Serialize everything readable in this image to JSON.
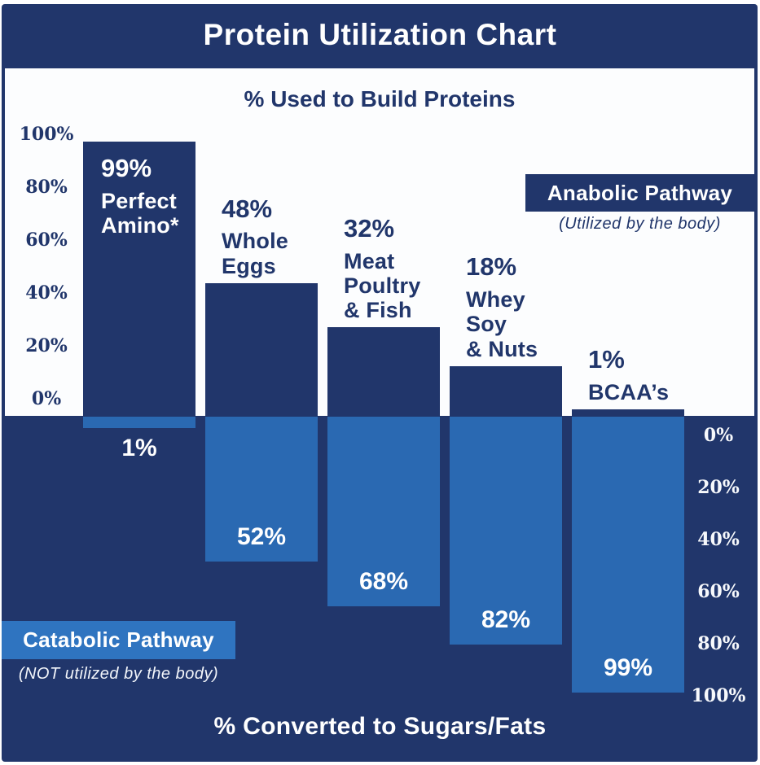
{
  "colors": {
    "navy": "#21366B",
    "bar_blue": "#2A69B2",
    "legend_blue": "#2F74C0",
    "background_white": "#FCFDFE",
    "text_white": "#FFFFFF"
  },
  "header": {
    "title": "Protein Utilization Chart"
  },
  "anabolic": {
    "title": "% Used to Build Proteins",
    "legend_label": "Anabolic Pathway",
    "legend_sub": "(Utilized by the body)",
    "axis_ticks": [
      "100%",
      "80%",
      "60%",
      "40%",
      "20%",
      "0%"
    ]
  },
  "catabolic": {
    "title": "% Converted to Sugars/Fats",
    "legend_label": "Catabolic Pathway",
    "legend_sub": "(NOT utilized by the body)",
    "axis_ticks": [
      "0%",
      "20%",
      "40%",
      "60%",
      "80%",
      "100%"
    ]
  },
  "chart_data": {
    "type": "bar",
    "categories": [
      "Perfect Amino*",
      "Whole Eggs",
      "Meat Poultry & Fish",
      "Whey Soy & Nuts",
      "BCAA's"
    ],
    "series": [
      {
        "name": "% Used to Build Proteins",
        "values": [
          99,
          48,
          32,
          18,
          1
        ]
      },
      {
        "name": "% Converted to Sugars/Fats",
        "values": [
          1,
          52,
          68,
          82,
          99
        ]
      }
    ],
    "title": "Protein Utilization Chart",
    "up_axis_range": [
      0,
      100
    ],
    "down_axis_range": [
      0,
      100
    ],
    "grid": false,
    "legend_position": "anabolic top-right, catabolic bottom-left"
  },
  "bars": [
    {
      "up_label": "99%",
      "name_lines": [
        "Perfect",
        "Amino*"
      ],
      "up": 99,
      "down": 1,
      "down_label": "1%",
      "label_inside": true
    },
    {
      "up_label": "48%",
      "name_lines": [
        "Whole",
        "Eggs"
      ],
      "up": 48,
      "down": 52,
      "down_label": "52%",
      "label_inside": false
    },
    {
      "up_label": "32%",
      "name_lines": [
        "Meat",
        "Poultry",
        "& Fish"
      ],
      "up": 32,
      "down": 68,
      "down_label": "68%",
      "label_inside": false
    },
    {
      "up_label": "18%",
      "name_lines": [
        "Whey",
        "Soy",
        "& Nuts"
      ],
      "up": 18,
      "down": 82,
      "down_label": "82%",
      "label_inside": false
    },
    {
      "up_label": "1%",
      "name_lines": [
        "BCAA’s"
      ],
      "up": 1,
      "down": 99,
      "down_label": "99%",
      "label_inside": false
    }
  ]
}
